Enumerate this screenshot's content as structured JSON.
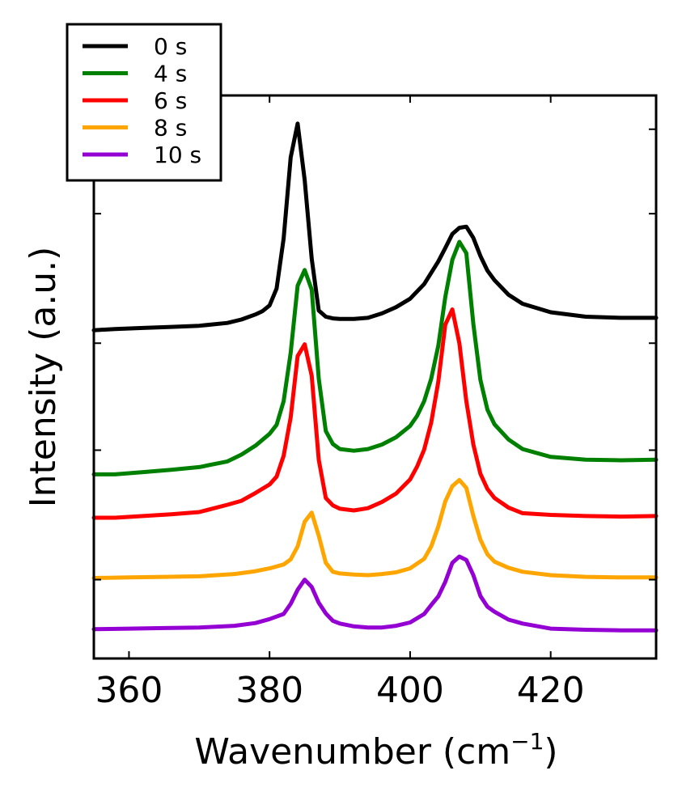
{
  "chart_data": {
    "type": "line",
    "xlabel": "Wavenumber (cm",
    "xlabel_sup": "−1",
    "xlabel_close": ")",
    "ylabel": "Intensity (a.u.)",
    "xlim": [
      355,
      435
    ],
    "ylim": [
      0,
      10
    ],
    "xticks": [
      360,
      380,
      400,
      420
    ],
    "yticks": [
      1.4,
      3.7,
      5.6,
      7.9,
      9.4
    ],
    "legend": {
      "position": "upper-left"
    },
    "series": [
      {
        "name": "0 s",
        "color": "#000000",
        "x": [
          355,
          358,
          362,
          366,
          370,
          374,
          376,
          378,
          379,
          380,
          381,
          382,
          383,
          384,
          385,
          386,
          387,
          388,
          389,
          390,
          392,
          394,
          396,
          398,
          400,
          402,
          404,
          405,
          406,
          407,
          408,
          409,
          410,
          411,
          412,
          414,
          416,
          420,
          425,
          430,
          435
        ],
        "y": [
          5.83,
          5.85,
          5.87,
          5.89,
          5.91,
          5.96,
          6.02,
          6.11,
          6.17,
          6.27,
          6.57,
          7.46,
          8.9,
          9.5,
          8.5,
          7.1,
          6.18,
          6.07,
          6.04,
          6.03,
          6.03,
          6.05,
          6.13,
          6.24,
          6.39,
          6.65,
          7.05,
          7.29,
          7.54,
          7.65,
          7.67,
          7.47,
          7.15,
          6.89,
          6.72,
          6.46,
          6.3,
          6.15,
          6.07,
          6.05,
          6.05
        ]
      },
      {
        "name": "4 s",
        "color": "#008000",
        "x": [
          355,
          358,
          362,
          366,
          370,
          374,
          376,
          378,
          380,
          381,
          382,
          383,
          384,
          385,
          386,
          387,
          388,
          389,
          390,
          392,
          394,
          396,
          398,
          400,
          401,
          402,
          403,
          404,
          405,
          406,
          407,
          408,
          409,
          410,
          411,
          412,
          414,
          416,
          420,
          425,
          430,
          435
        ],
        "y": [
          3.27,
          3.27,
          3.31,
          3.35,
          3.4,
          3.5,
          3.62,
          3.78,
          3.99,
          4.15,
          4.57,
          5.43,
          6.62,
          6.9,
          6.55,
          4.97,
          4.04,
          3.81,
          3.72,
          3.69,
          3.72,
          3.8,
          3.93,
          4.13,
          4.31,
          4.57,
          4.97,
          5.55,
          6.42,
          7.08,
          7.4,
          7.2,
          5.94,
          4.95,
          4.42,
          4.16,
          3.89,
          3.72,
          3.58,
          3.53,
          3.52,
          3.53
        ]
      },
      {
        "name": "6 s",
        "color": "#ff0000",
        "x": [
          355,
          358,
          362,
          366,
          370,
          374,
          376,
          378,
          380,
          381,
          382,
          383,
          384,
          385,
          386,
          387,
          388,
          389,
          390,
          392,
          394,
          396,
          398,
          400,
          401,
          402,
          403,
          404,
          405,
          406,
          407,
          408,
          409,
          410,
          411,
          412,
          414,
          416,
          420,
          425,
          430,
          435
        ],
        "y": [
          2.5,
          2.5,
          2.53,
          2.56,
          2.6,
          2.73,
          2.8,
          2.94,
          3.09,
          3.23,
          3.6,
          4.28,
          5.37,
          5.58,
          5.02,
          3.53,
          2.85,
          2.72,
          2.66,
          2.63,
          2.67,
          2.78,
          2.93,
          3.18,
          3.41,
          3.71,
          4.19,
          4.91,
          5.93,
          6.2,
          5.6,
          4.57,
          3.8,
          3.28,
          3.01,
          2.85,
          2.68,
          2.58,
          2.55,
          2.53,
          2.52,
          2.53
        ]
      },
      {
        "name": "8 s",
        "color": "#ffa500",
        "x": [
          355,
          360,
          365,
          370,
          375,
          378,
          380,
          382,
          383,
          384,
          385,
          386,
          387,
          388,
          389,
          390,
          392,
          394,
          396,
          398,
          400,
          402,
          403,
          404,
          405,
          406,
          407,
          408,
          409,
          410,
          411,
          412,
          414,
          416,
          420,
          425,
          430,
          435
        ],
        "y": [
          1.43,
          1.44,
          1.45,
          1.46,
          1.5,
          1.55,
          1.6,
          1.67,
          1.76,
          1.99,
          2.43,
          2.59,
          2.18,
          1.7,
          1.54,
          1.51,
          1.49,
          1.48,
          1.5,
          1.53,
          1.6,
          1.77,
          1.99,
          2.34,
          2.79,
          3.06,
          3.17,
          3.03,
          2.53,
          2.11,
          1.85,
          1.72,
          1.61,
          1.54,
          1.48,
          1.45,
          1.44,
          1.44
        ]
      },
      {
        "name": "10 s",
        "color": "#9400d3",
        "x": [
          355,
          360,
          365,
          370,
          375,
          378,
          380,
          382,
          383,
          384,
          385,
          386,
          387,
          388,
          389,
          390,
          392,
          394,
          396,
          398,
          400,
          402,
          403,
          404,
          405,
          406,
          407,
          408,
          409,
          410,
          411,
          412,
          414,
          416,
          420,
          425,
          430,
          435
        ],
        "y": [
          0.52,
          0.53,
          0.54,
          0.55,
          0.58,
          0.63,
          0.7,
          0.79,
          0.97,
          1.22,
          1.4,
          1.27,
          0.99,
          0.8,
          0.67,
          0.62,
          0.57,
          0.55,
          0.55,
          0.58,
          0.64,
          0.79,
          0.95,
          1.1,
          1.36,
          1.7,
          1.81,
          1.75,
          1.48,
          1.11,
          0.92,
          0.83,
          0.69,
          0.62,
          0.53,
          0.51,
          0.5,
          0.5
        ]
      }
    ]
  }
}
